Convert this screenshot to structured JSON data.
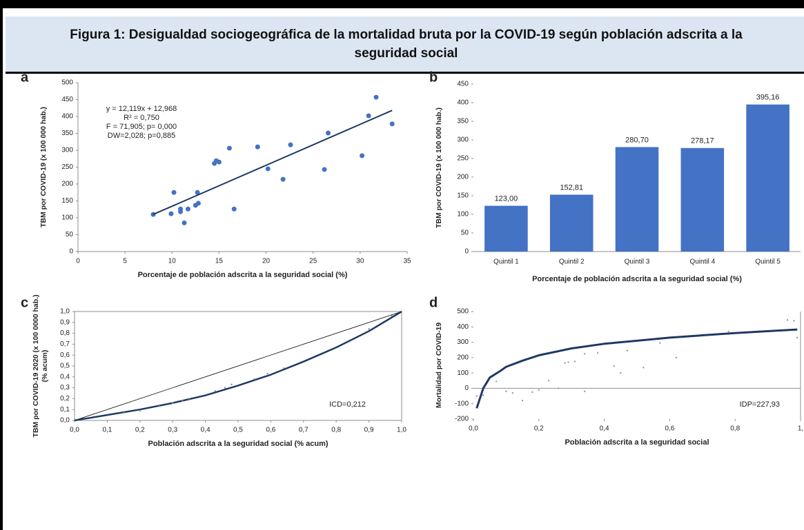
{
  "figure_title": "Figura 1: Desigualdad sociogeográfica de la mortalidad bruta por la COVID-19 según población adscrita a la seguridad social",
  "chart_data": [
    {
      "type": "scatter",
      "label": "a",
      "xlabel": "Porcentaje de población adscrita a la seguridad social (%)",
      "ylabel": [
        "TBM  por COVID-19   (x 100 000 hab.)"
      ],
      "xlim": [
        0,
        35
      ],
      "xticks": [
        0,
        5,
        10,
        15,
        20,
        25,
        30,
        35
      ],
      "ylim": [
        0,
        500
      ],
      "yticks": [
        0,
        50,
        100,
        150,
        200,
        250,
        300,
        350,
        400,
        450,
        500
      ],
      "axes": [
        "left",
        "bottom"
      ],
      "annotations": [
        "y = 12,119x + 12,968",
        "R² = 0,750",
        "F = 71,905;  p= 0,000",
        "DW=2,028;  p=0,885"
      ],
      "series": [
        {
          "type": "scatter",
          "color": "#4472c4",
          "marker_size": 3.5,
          "x": [
            8.0,
            9.9,
            10.2,
            10.9,
            10.9,
            11.3,
            11.7,
            12.5,
            12.8,
            12.7,
            14.5,
            14.7,
            15.0,
            16.1,
            16.6,
            19.1,
            20.2,
            21.8,
            22.6,
            26.2,
            26.6,
            30.2,
            30.9,
            31.7,
            33.4
          ],
          "values": [
            110,
            112,
            175,
            126,
            118,
            85,
            126,
            137,
            143,
            175,
            261,
            269,
            265,
            306,
            126,
            310,
            245,
            214,
            316,
            243,
            351,
            284,
            402,
            457,
            378
          ]
        },
        {
          "type": "line",
          "color": "#1f3864",
          "line_width": 2,
          "x": [
            8.0,
            33.4
          ],
          "values": [
            110,
            418
          ]
        }
      ]
    },
    {
      "type": "bar",
      "label": "b",
      "xlabel": "Porcentaje de población adscrita a la seguridad social (%)",
      "ylabel": [
        "TBM  por COVID-19    (x 100 000 hab.)"
      ],
      "categories": [
        "Quintil 1",
        "Quintil 2",
        "Quintil 3",
        "Quintil 4",
        "Quintil 5"
      ],
      "values": [
        123.0,
        152.81,
        280.7,
        278.17,
        395.16
      ],
      "value_labels": [
        "123,00",
        "152,81",
        "280,70",
        "278,17",
        "395,16"
      ],
      "color": "#4472c4",
      "ylim": [
        0,
        450
      ],
      "yticks": [
        0,
        50,
        100,
        150,
        200,
        250,
        300,
        350,
        400,
        450
      ],
      "axes": [
        "bottom"
      ]
    },
    {
      "type": "line",
      "label": "c",
      "xlabel": "Población  adscrita a la seguridad  social  (% acum)",
      "ylabel": [
        "TBM  por COVID-19  2020 (x 100 0000 hab.)",
        "(% acum)"
      ],
      "xlim": [
        0,
        1
      ],
      "xticks": [
        {
          "value": 0,
          "label": "0,0"
        },
        {
          "value": 0.1,
          "label": "0,1"
        },
        {
          "value": 0.2,
          "label": "0,2"
        },
        {
          "value": 0.3,
          "label": "0,3"
        },
        {
          "value": 0.4,
          "label": "0,4"
        },
        {
          "value": 0.5,
          "label": "0,5"
        },
        {
          "value": 0.6,
          "label": "0,6"
        },
        {
          "value": 0.7,
          "label": "0,7"
        },
        {
          "value": 0.8,
          "label": "0,8"
        },
        {
          "value": 0.9,
          "label": "0,9"
        },
        {
          "value": 1,
          "label": "1,0"
        }
      ],
      "ylim": [
        0,
        1
      ],
      "yticks": [
        {
          "value": 0,
          "label": "0,0"
        },
        {
          "value": 0.1,
          "label": "0,1"
        },
        {
          "value": 0.2,
          "label": "0,2"
        },
        {
          "value": 0.3,
          "label": "0,3"
        },
        {
          "value": 0.4,
          "label": "0,4"
        },
        {
          "value": 0.5,
          "label": "0,5"
        },
        {
          "value": 0.6,
          "label": "0,6"
        },
        {
          "value": 0.7,
          "label": "0,7"
        },
        {
          "value": 0.8,
          "label": "0,8"
        },
        {
          "value": 0.9,
          "label": "0,9"
        },
        {
          "value": 1,
          "label": "1,0"
        }
      ],
      "axes": [
        "left",
        "bottom",
        "top",
        "right"
      ],
      "annotations": [
        "ICD=0,212"
      ],
      "series": [
        {
          "type": "line",
          "color": "#000000",
          "line_width": 0.8,
          "x": [
            0,
            1
          ],
          "values": [
            0,
            1
          ]
        },
        {
          "type": "line",
          "color": "#1f3864",
          "line_width": 2.5,
          "x": [
            0,
            0.1,
            0.2,
            0.3,
            0.4,
            0.5,
            0.6,
            0.7,
            0.8,
            0.9,
            1
          ],
          "values": [
            0,
            0.05,
            0.1,
            0.16,
            0.23,
            0.32,
            0.42,
            0.54,
            0.67,
            0.82,
            1
          ]
        },
        {
          "type": "scatter",
          "color": "#888888",
          "marker_size": 1.2,
          "x": [
            0.15,
            0.2,
            0.26,
            0.3,
            0.33,
            0.35,
            0.43,
            0.46,
            0.48,
            0.55,
            0.59,
            0.64,
            0.9,
            0.97
          ],
          "values": [
            0.07,
            0.09,
            0.13,
            0.16,
            0.18,
            0.2,
            0.27,
            0.3,
            0.33,
            0.38,
            0.43,
            0.48,
            0.84,
            0.96
          ]
        }
      ]
    },
    {
      "type": "line",
      "label": "d",
      "xlabel": "Población adscrita a la seguridad social",
      "ylabel": [
        "Mortalidad por COVID-19"
      ],
      "xlim": [
        0,
        1
      ],
      "xticks": [
        {
          "value": 0,
          "label": "0,0"
        },
        {
          "value": 0.2,
          "label": "0,2"
        },
        {
          "value": 0.4,
          "label": "0,4"
        },
        {
          "value": 0.6,
          "label": "0,6"
        },
        {
          "value": 0.8,
          "label": "0,8"
        },
        {
          "value": 1,
          "label": "1,"
        }
      ],
      "ylim": [
        -200,
        500
      ],
      "yticks": [
        -200,
        -100,
        0,
        100,
        200,
        300,
        400,
        500
      ],
      "axes": [
        "zero",
        "right"
      ],
      "annotations": [
        "IDP=227,93"
      ],
      "series": [
        {
          "type": "line",
          "color": "#1f3864",
          "line_width": 3,
          "x": [
            0.01,
            0.03,
            0.05,
            0.08,
            0.1,
            0.15,
            0.2,
            0.3,
            0.4,
            0.5,
            0.6,
            0.7,
            0.8,
            0.9,
            0.99
          ],
          "values": [
            -130,
            0,
            70,
            110,
            140,
            180,
            215,
            260,
            290,
            310,
            330,
            345,
            360,
            372,
            383
          ]
        },
        {
          "type": "scatter",
          "color": "#999999",
          "marker_size": 1.2,
          "x": [
            0.01,
            0.03,
            0.07,
            0.1,
            0.12,
            0.15,
            0.18,
            0.2,
            0.23,
            0.26,
            0.28,
            0.29,
            0.31,
            0.34,
            0.34,
            0.38,
            0.43,
            0.45,
            0.47,
            0.52,
            0.57,
            0.62,
            0.78,
            0.96,
            0.98,
            0.99
          ],
          "values": [
            -50,
            -45,
            45,
            -20,
            -30,
            -80,
            -25,
            -10,
            50,
            0,
            165,
            170,
            175,
            225,
            -20,
            230,
            145,
            100,
            245,
            135,
            295,
            200,
            370,
            445,
            440,
            330
          ]
        }
      ]
    }
  ]
}
